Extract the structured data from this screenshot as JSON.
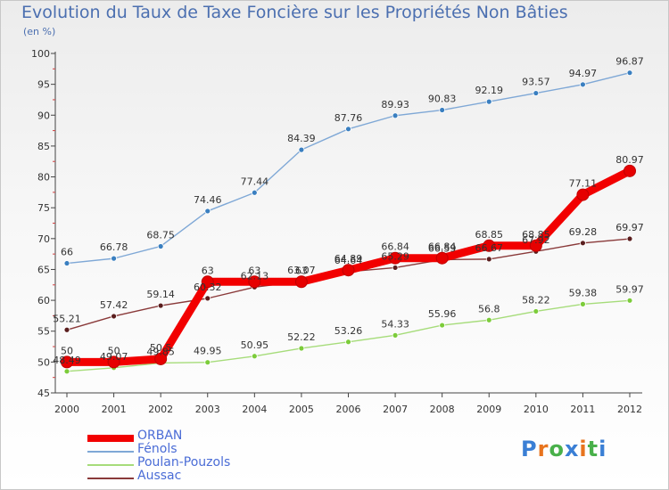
{
  "title": "Evolution du Taux de Taxe Foncière sur les Propriétés Non Bâties",
  "subtitle": "(en %)",
  "logo": {
    "letters": [
      "P",
      "r",
      "o",
      "x",
      "i",
      "t",
      "i"
    ],
    "colors": [
      "#3a7fd5",
      "#e8741e",
      "#49b04a",
      "#3a7fd5",
      "#e8741e",
      "#49b04a",
      "#3a7fd5"
    ]
  },
  "chart_data": {
    "type": "line",
    "title": "Evolution du Taux de Taxe Foncière sur les Propriétés Non Bâties",
    "ylabel": "(en %)",
    "x": [
      "2000",
      "2001",
      "2002",
      "2003",
      "2004",
      "2005",
      "2006",
      "2007",
      "2008",
      "2009",
      "2010",
      "2011",
      "2012"
    ],
    "ylim": [
      45,
      100
    ],
    "yticks": [
      45,
      50,
      55,
      60,
      65,
      70,
      75,
      80,
      85,
      90,
      95,
      100
    ],
    "grid": false,
    "legend_position": "bottom-left",
    "series": [
      {
        "name": "Fénols",
        "color": "#7fa8d6",
        "marker_color": "#3a7fc0",
        "values": [
          66,
          66.78,
          68.75,
          74.46,
          77.44,
          84.39,
          87.76,
          89.93,
          90.83,
          92.19,
          93.57,
          94.97,
          96.87
        ],
        "labels": [
          "66",
          "66.78",
          "68.75",
          "74.46",
          "77.44",
          "84.39",
          "87.76",
          "89.93",
          "90.83",
          "92.19",
          "93.57",
          "94.97",
          "96.87"
        ]
      },
      {
        "name": "Aussac",
        "color": "#8a3a3a",
        "marker_color": "#5a1e1e",
        "values": [
          55.21,
          57.42,
          59.14,
          60.32,
          62.13,
          63.07,
          64.64,
          65.29,
          66.59,
          66.67,
          67.92,
          69.28,
          69.97
        ],
        "labels": [
          "55.21",
          "57.42",
          "59.14",
          "60.32",
          "62.13",
          "63.07",
          "64.64",
          "65.29",
          "66.59",
          "66.67",
          "67.92",
          "69.28",
          "69.97"
        ]
      },
      {
        "name": "Poulan-Pouzols",
        "color": "#a6dc7a",
        "marker_color": "#7ccc3a",
        "values": [
          48.49,
          49.07,
          49.85,
          49.95,
          50.95,
          52.22,
          53.26,
          54.33,
          55.96,
          56.8,
          58.22,
          59.38,
          59.97
        ],
        "labels": [
          "48.49",
          "49.07",
          "49.85",
          "49.95",
          "50.95",
          "52.22",
          "53.26",
          "54.33",
          "55.96",
          "56.8",
          "58.22",
          "59.38",
          "59.97"
        ]
      },
      {
        "name": "ORBAN",
        "color": "#f20000",
        "marker_color": "#e60000",
        "values": [
          50,
          50,
          50.5,
          63,
          63,
          63,
          64.89,
          66.84,
          66.84,
          68.85,
          68.85,
          77.11,
          80.97
        ],
        "labels": [
          "50",
          "50",
          "50.5",
          "63",
          "63",
          "63",
          "64.89",
          "66.84",
          "66.84",
          "68.85",
          "68.85",
          "77.11",
          "80.97"
        ]
      }
    ],
    "legend": [
      "ORBAN",
      "Fénols",
      "Poulan-Pouzols",
      "Aussac"
    ]
  }
}
